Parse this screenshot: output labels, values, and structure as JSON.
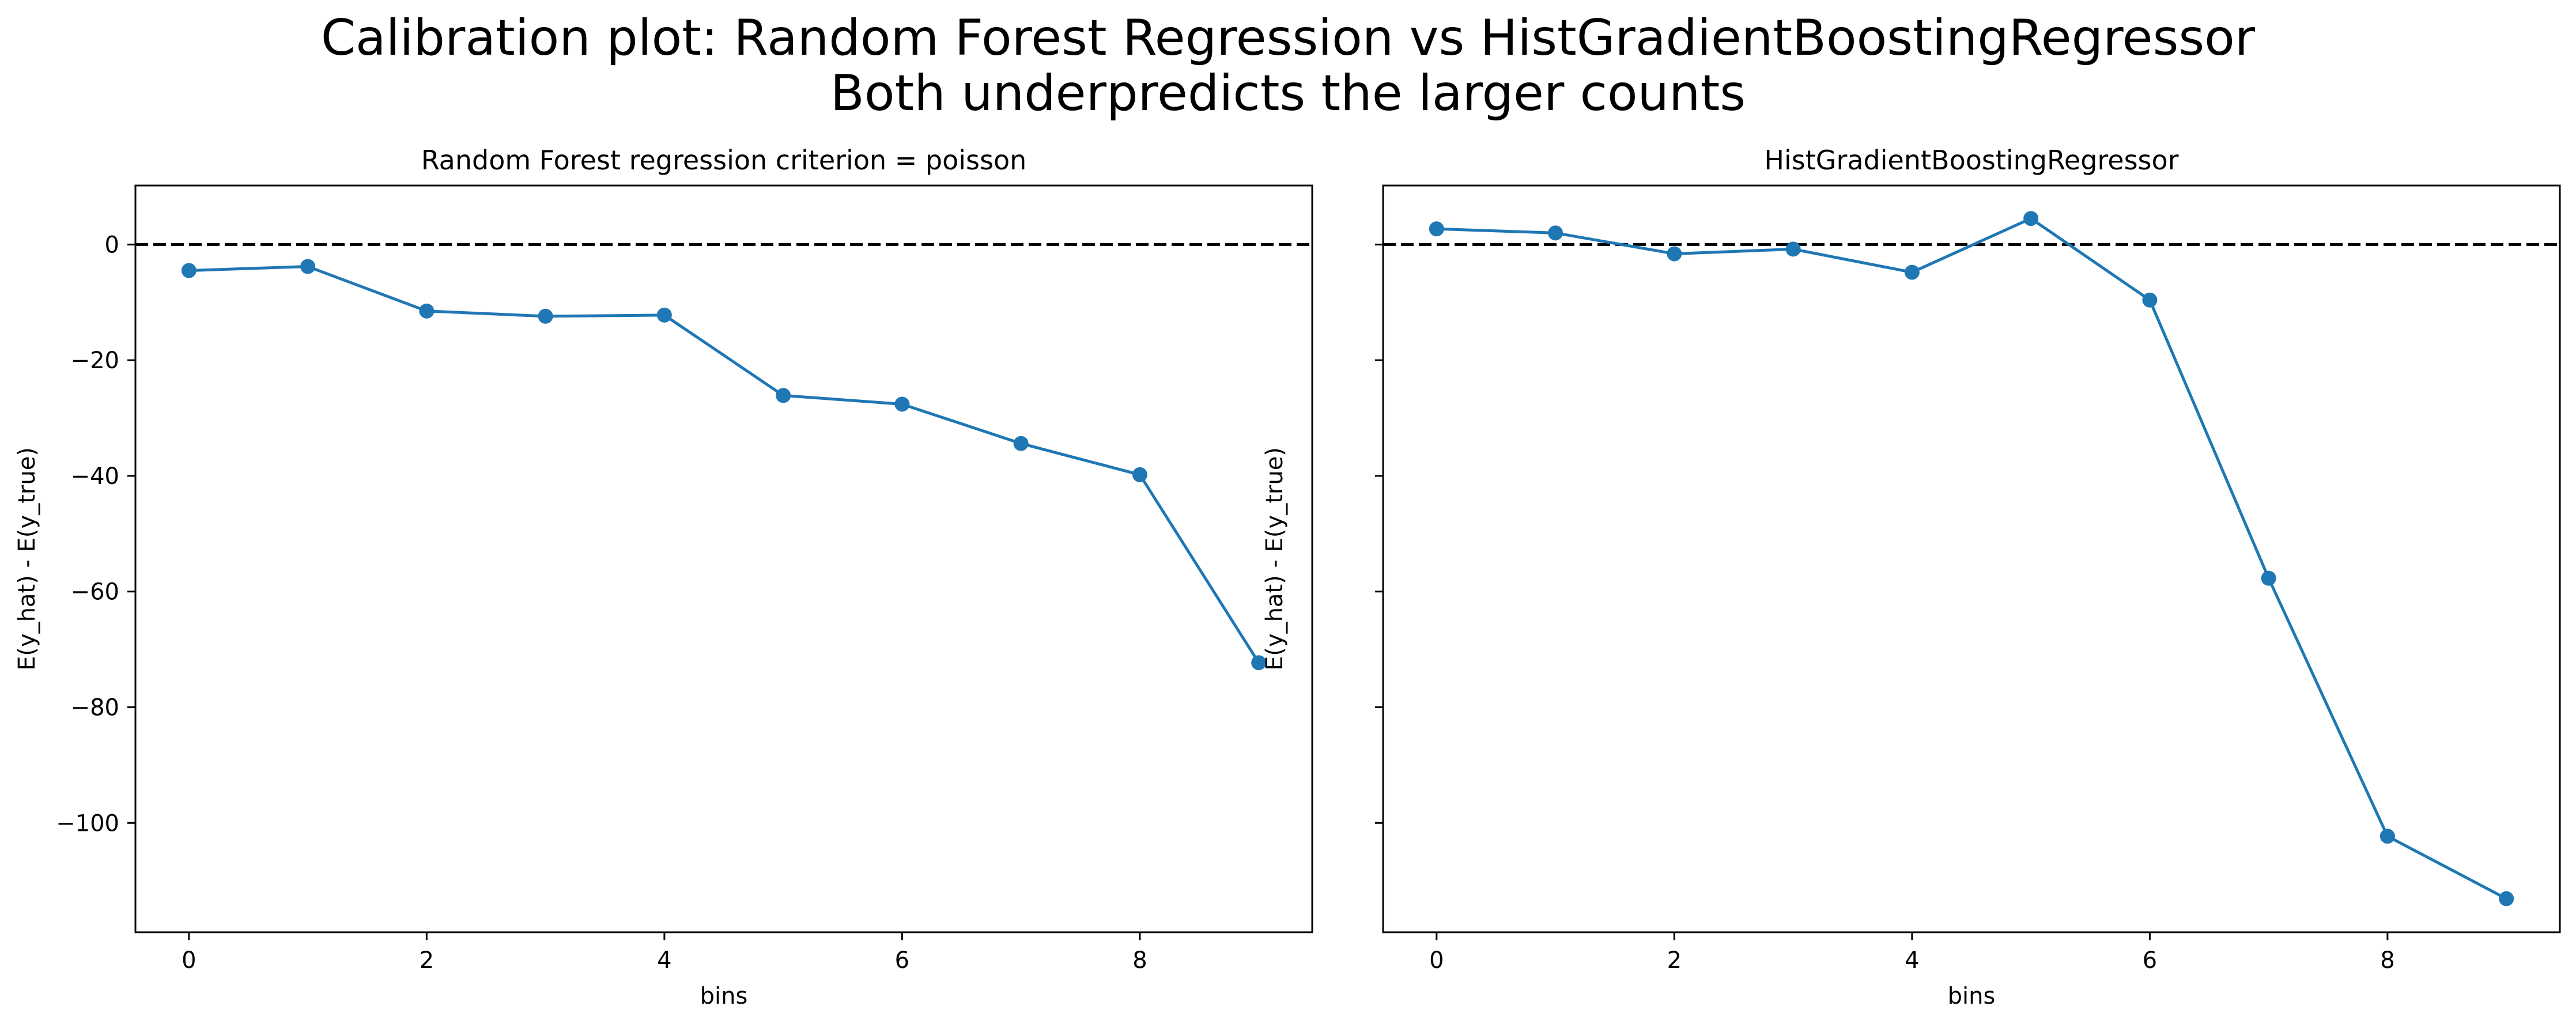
{
  "figure": {
    "title_line1": "Calibration plot: Random Forest Regression vs HistGradientBoostingRegressor",
    "title_line2": "Both underpredicts the larger counts"
  },
  "chart_data": [
    {
      "type": "line",
      "title": "Random Forest regression criterion = poisson",
      "xlabel": "bins",
      "ylabel": "E(y_hat) - E(y_true)",
      "x": [
        0,
        1,
        2,
        3,
        4,
        5,
        6,
        7,
        8,
        9
      ],
      "series": [
        {
          "values": [
            -4.5,
            -3.8,
            -11.5,
            -12.4,
            -12.2,
            -26.1,
            -27.6,
            -34.4,
            -39.8,
            -72.3
          ]
        }
      ],
      "xticks": [
        0,
        2,
        4,
        6,
        8
      ],
      "yticks": [
        0,
        -20,
        -40,
        -60,
        -80,
        -100
      ],
      "xlim": [
        -0.45,
        9.45
      ],
      "ylim": [
        -118.9,
        10.2
      ],
      "reference_line": {
        "y": 0,
        "style": "dashed",
        "color": "#000000"
      },
      "markers": "circle",
      "color": "#1f77b4",
      "grid": false
    },
    {
      "type": "line",
      "title": "HistGradientBoostingRegressor",
      "xlabel": "bins",
      "ylabel": "E(y_hat) - E(y_true)",
      "x": [
        0,
        1,
        2,
        3,
        4,
        5,
        6,
        7,
        8,
        9
      ],
      "series": [
        {
          "values": [
            2.7,
            2.0,
            -1.6,
            -0.8,
            -4.8,
            4.5,
            -9.6,
            -57.7,
            -102.3,
            -113.1
          ]
        }
      ],
      "xticks": [
        0,
        2,
        4,
        6,
        8
      ],
      "yticks": [
        0,
        -20,
        -40,
        -60,
        -80,
        -100
      ],
      "ytick_labels_visible": false,
      "sharey": true,
      "xlim": [
        -0.45,
        9.45
      ],
      "ylim": [
        -118.9,
        10.2
      ],
      "reference_line": {
        "y": 0,
        "style": "dashed",
        "color": "#000000"
      },
      "markers": "circle",
      "color": "#1f77b4",
      "grid": false
    }
  ]
}
